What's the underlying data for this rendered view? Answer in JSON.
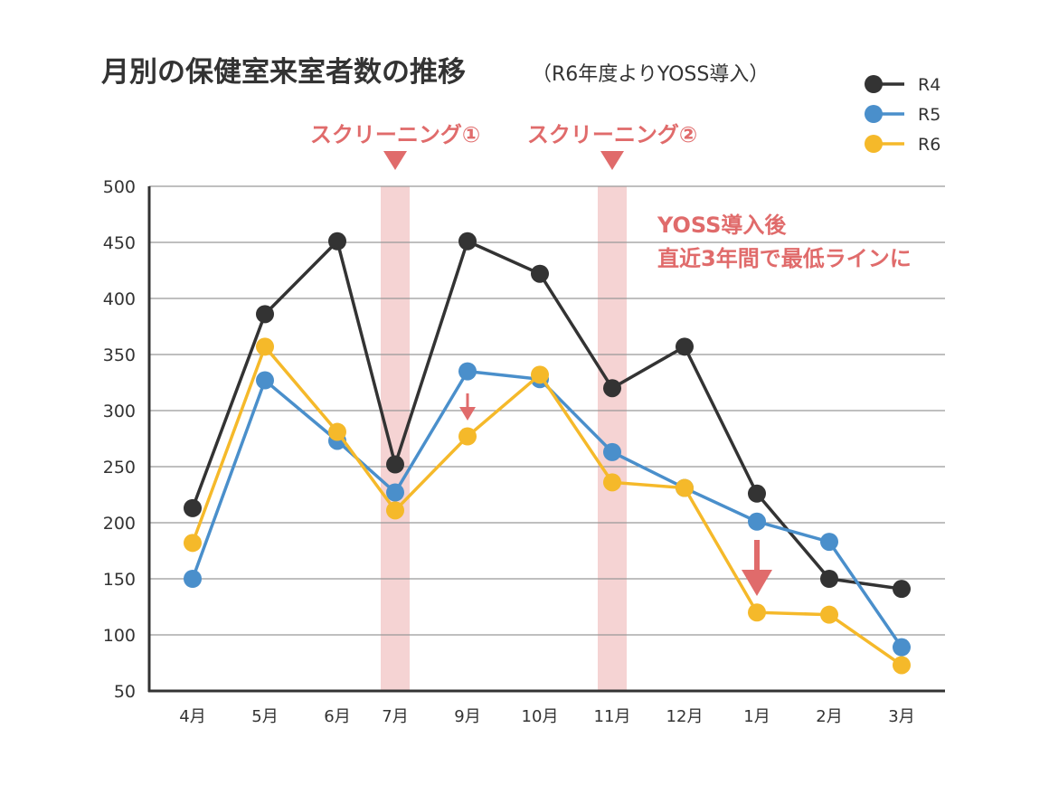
{
  "chart_data": {
    "type": "line",
    "title": "月別の保健室来室者数の推移",
    "subtitle": "（R6年度よりYOSS導入）",
    "xlabel": "",
    "ylabel": "",
    "categories": [
      "4月",
      "5月",
      "6月",
      "7月",
      "9月",
      "10月",
      "11月",
      "12月",
      "1月",
      "2月",
      "3月"
    ],
    "ylim": [
      50,
      500
    ],
    "yticks": [
      50,
      100,
      150,
      200,
      250,
      300,
      350,
      400,
      450,
      500
    ],
    "grid": true,
    "legend_position": "top-right",
    "series": [
      {
        "name": "R4",
        "color": "#333333",
        "values": [
          213,
          386,
          451,
          252,
          451,
          422,
          320,
          357,
          226,
          150,
          141
        ]
      },
      {
        "name": "R5",
        "color": "#4a8fcb",
        "values": [
          150,
          327,
          273,
          227,
          335,
          328,
          263,
          231,
          201,
          183,
          89
        ]
      },
      {
        "name": "R6",
        "color": "#f5b92a",
        "values": [
          182,
          357,
          281,
          211,
          277,
          332,
          236,
          231,
          120,
          118,
          73
        ]
      }
    ],
    "highlight_bands": [
      {
        "category": "7月",
        "label": "スクリーニング①"
      },
      {
        "category": "11月",
        "label": "スクリーニング②"
      }
    ],
    "annotation_lines": [
      "YOSS導入後",
      "直近3年間で最低ラインに"
    ],
    "arrows": [
      {
        "category": "9月",
        "size": "small"
      },
      {
        "category": "1月",
        "size": "large"
      }
    ],
    "annotation_color": "#e06b6b",
    "band_color": "#f5d3d3"
  }
}
